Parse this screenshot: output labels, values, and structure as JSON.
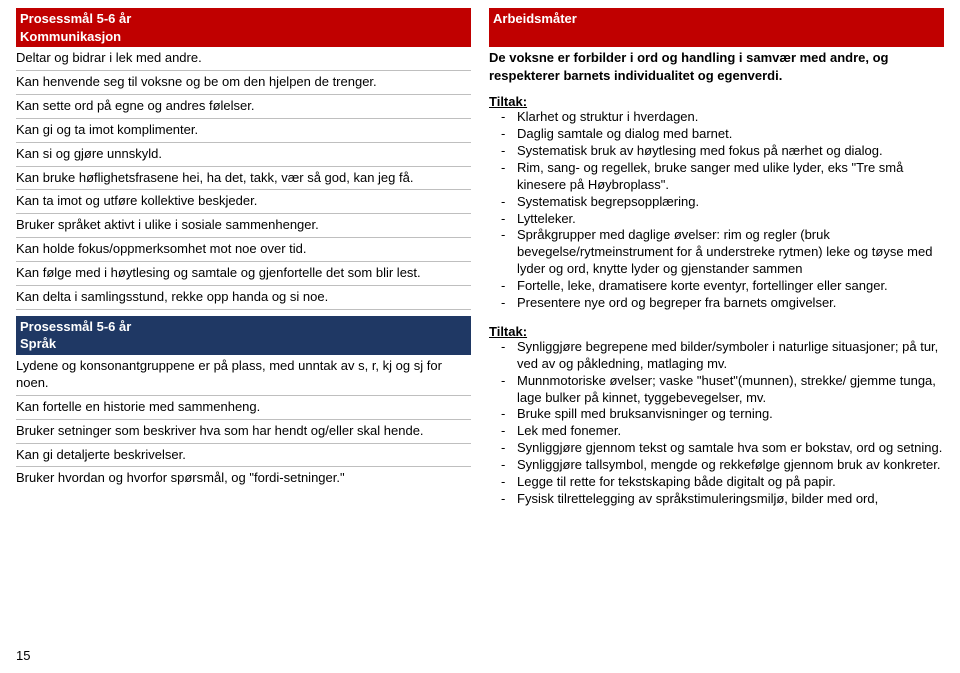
{
  "left": {
    "header1": {
      "line1": "Prosessmål 5-6 år",
      "line2": "Kommunikasjon"
    },
    "block1": [
      "Deltar og bidrar i lek med andre.",
      "Kan henvende seg til voksne og be om den hjelpen de trenger.",
      "Kan sette ord på egne og andres følelser.",
      "Kan gi og ta imot komplimenter.",
      "Kan si og gjøre unnskyld.",
      "Kan bruke høflighetsfrasene hei, ha det, takk, vær så god, kan jeg få.",
      "Kan ta imot og utføre kollektive beskjeder.",
      "Bruker språket aktivt i ulike i sosiale sammenhenger.",
      "Kan holde fokus/oppmerksomhet mot noe over tid.",
      "Kan følge med i høytlesing og samtale og gjenfortelle det som blir lest.",
      "Kan delta i samlingsstund, rekke opp handa og si noe."
    ],
    "header2": {
      "line1": "Prosessmål 5-6 år",
      "line2": "Språk"
    },
    "block2": [
      "Lydene og konsonantgruppene er på plass, med unntak av s, r, kj og sj for noen.",
      "Kan fortelle en historie med sammenheng.",
      "Bruker setninger som beskriver hva som har hendt og/eller skal hende.",
      "Kan gi detaljerte beskrivelser.",
      "Bruker hvordan og hvorfor spørsmål, og \"fordi-setninger.\""
    ]
  },
  "right": {
    "header": "Arbeidsmåter",
    "intro": "De voksne er forbilder i ord og handling i samvær med andre, og respekterer barnets individualitet og egenverdi.",
    "tiltak1_label": "Tiltak:",
    "tiltak1": [
      "Klarhet og struktur i hverdagen.",
      "Daglig samtale og dialog med barnet.",
      "Systematisk bruk av høytlesing med fokus på nærhet og dialog.",
      "Rim, sang- og regellek, bruke sanger med ulike lyder, eks \"Tre små kinesere på Høybroplass\".",
      "Systematisk begrepsopplæring.",
      "Lytteleker.",
      "Språkgrupper med daglige øvelser: rim og regler (bruk bevegelse/rytmeinstrument for å understreke rytmen) leke og tøyse med lyder og ord, knytte lyder og gjenstander sammen",
      "Fortelle, leke, dramatisere korte eventyr, fortellinger eller sanger.",
      "Presentere nye ord og begreper fra barnets omgivelser."
    ],
    "tiltak2_label": "Tiltak:",
    "tiltak2": [
      "Synliggjøre begrepene med bilder/symboler i naturlige situasjoner; på tur, ved av og påkledning, matlaging mv.",
      "Munnmotoriske øvelser; vaske \"huset\"(munnen), strekke/ gjemme tunga, lage bulker på kinnet, tyggebevegelser, mv.",
      "Bruke spill med bruksanvisninger og terning.",
      "Lek med fonemer.",
      "Synliggjøre gjennom tekst og samtale hva som er bokstav, ord og setning.",
      "Synliggjøre tallsymbol, mengde og rekkefølge gjennom bruk av konkreter.",
      "Legge til rette for tekstskaping både digitalt og på papir.",
      "Fysisk tilrettelegging av språkstimuleringsmiljø, bilder med ord,"
    ]
  },
  "pageNumber": "15"
}
